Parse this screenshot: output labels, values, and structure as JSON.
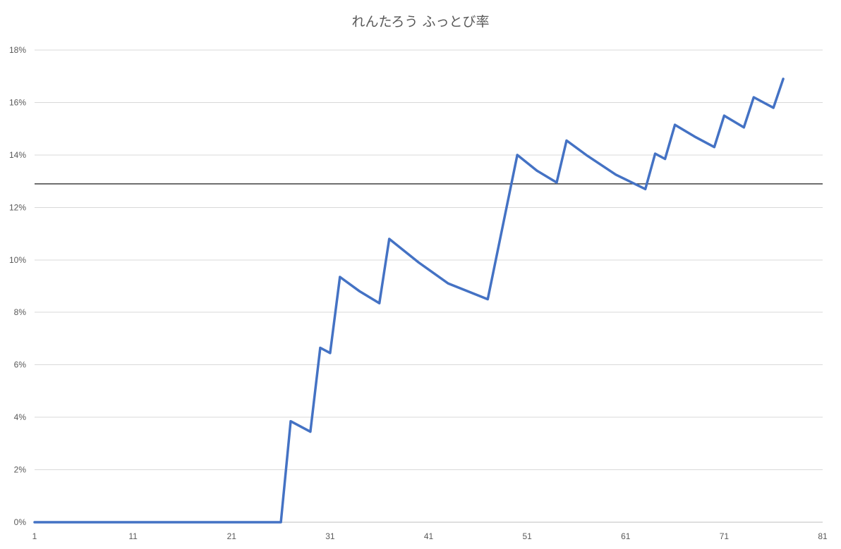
{
  "chart_data": {
    "type": "line",
    "title": "れんたろう ふっとび率",
    "xlabel": "",
    "ylabel": "",
    "xlim": [
      1,
      81
    ],
    "ylim": [
      0,
      18
    ],
    "x_ticks": [
      1,
      11,
      21,
      31,
      41,
      51,
      61,
      71,
      81
    ],
    "y_ticks": [
      0,
      2,
      4,
      6,
      8,
      10,
      12,
      14,
      16,
      18
    ],
    "y_tick_labels": [
      "0%",
      "2%",
      "4%",
      "6%",
      "8%",
      "10%",
      "12%",
      "14%",
      "16%",
      "18%"
    ],
    "grid": "horizontal",
    "legend": "none",
    "reference_line": {
      "y": 12.9,
      "color": "#404040"
    },
    "series": [
      {
        "color": "#4472C4",
        "x": [
          1,
          26,
          27,
          29,
          30,
          31,
          32,
          34,
          36,
          37,
          40,
          43,
          47,
          50,
          52,
          54,
          55,
          57,
          60,
          63,
          64,
          65,
          66,
          68,
          70,
          71,
          73,
          74,
          76,
          77
        ],
        "y": [
          0,
          0,
          3.85,
          3.45,
          6.65,
          6.45,
          9.35,
          8.8,
          8.35,
          10.8,
          9.9,
          9.1,
          8.5,
          14.0,
          13.4,
          12.95,
          14.55,
          14.0,
          13.25,
          12.7,
          14.05,
          13.85,
          15.15,
          14.7,
          14.3,
          15.5,
          15.05,
          16.2,
          15.8,
          16.9
        ]
      }
    ]
  }
}
